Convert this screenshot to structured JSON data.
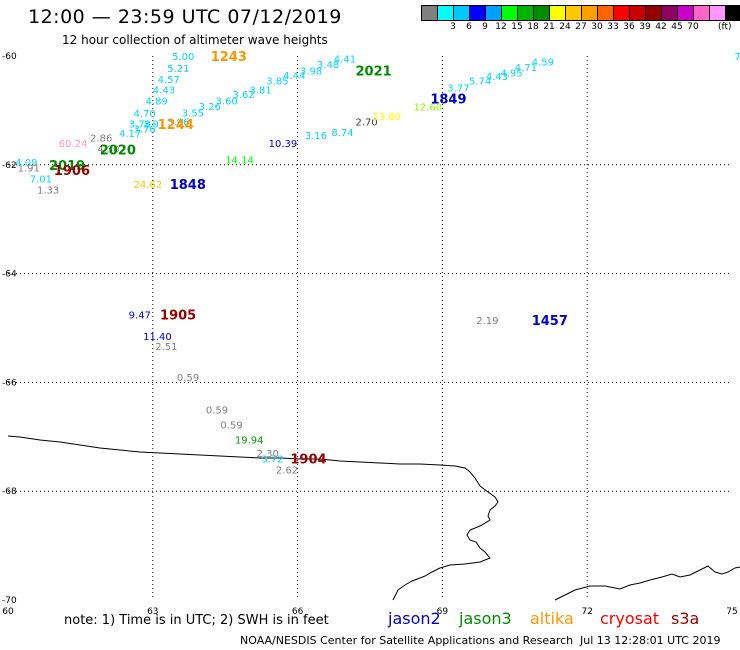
{
  "header": {
    "title": "12:00 — 23:59 UTC 07/12/2019",
    "subtitle": "12 hour collection of altimeter wave heights"
  },
  "legend": {
    "unit": "(ft)",
    "colors": [
      "#808080",
      "#00ffff",
      "#00c8ff",
      "#0000ff",
      "#00a0ff",
      "#00ff00",
      "#00b400",
      "#008c00",
      "#ffff00",
      "#ffc800",
      "#ffa000",
      "#ff6400",
      "#ff0000",
      "#c80000",
      "#960000",
      "#8c0064",
      "#c800c8",
      "#ff64c8",
      "#ff96ff",
      "#000000"
    ],
    "ticks": [
      {
        "label": "3",
        "index": 1
      },
      {
        "label": "6",
        "index": 2
      },
      {
        "label": "9",
        "index": 3
      },
      {
        "label": "12",
        "index": 4
      },
      {
        "label": "15",
        "index": 5
      },
      {
        "label": "18",
        "index": 6
      },
      {
        "label": "21",
        "index": 7
      },
      {
        "label": "24",
        "index": 8
      },
      {
        "label": "27",
        "index": 9
      },
      {
        "label": "30",
        "index": 10
      },
      {
        "label": "33",
        "index": 11
      },
      {
        "label": "36",
        "index": 12
      },
      {
        "label": "39",
        "index": 13
      },
      {
        "label": "42",
        "index": 14
      },
      {
        "label": "45",
        "index": 15
      },
      {
        "label": "70",
        "index": 16
      }
    ]
  },
  "axes": {
    "lon_ticks": [
      {
        "value": 60,
        "label": "60"
      },
      {
        "value": 63,
        "label": "63"
      },
      {
        "value": 66,
        "label": "66"
      },
      {
        "value": 69,
        "label": "69"
      },
      {
        "value": 72,
        "label": "72"
      },
      {
        "value": 75,
        "label": "75"
      }
    ],
    "lat_ticks": [
      {
        "value": -60,
        "label": "-60"
      },
      {
        "value": -62,
        "label": "-62"
      },
      {
        "value": -64,
        "label": "-64"
      },
      {
        "value": -66,
        "label": "-66"
      },
      {
        "value": -68,
        "label": "-68"
      },
      {
        "value": -70,
        "label": "-70"
      }
    ],
    "lon_range": [
      60,
      75
    ],
    "lat_range": [
      -60,
      -70
    ],
    "grid": "dotted"
  },
  "wave_heights": [
    {
      "lon": 63.4,
      "lat": -60.0,
      "text": "5.00",
      "color": "#00d8ff"
    },
    {
      "lon": 63.3,
      "lat": -60.22,
      "text": "5.21",
      "color": "#00d8ff"
    },
    {
      "lon": 63.1,
      "lat": -60.42,
      "text": "4.57",
      "color": "#00d8ff"
    },
    {
      "lon": 63.0,
      "lat": -60.62,
      "text": "4.43",
      "color": "#00d8ff"
    },
    {
      "lon": 62.85,
      "lat": -60.82,
      "text": "4.89",
      "color": "#00d8ff"
    },
    {
      "lon": 62.6,
      "lat": -61.05,
      "text": "4.70",
      "color": "#00d8ff"
    },
    {
      "lon": 62.5,
      "lat": -61.24,
      "text": "3.78",
      "color": "#00d8ff"
    },
    {
      "lon": 62.8,
      "lat": -61.24,
      "text": "3.9",
      "color": "#00d8ff"
    },
    {
      "lon": 62.6,
      "lat": -61.33,
      "text": "3.76",
      "color": "#00d8ff"
    },
    {
      "lon": 62.3,
      "lat": -61.42,
      "text": "4.17",
      "color": "#00d8ff"
    },
    {
      "lon": 61.7,
      "lat": -61.5,
      "text": "2.86",
      "color": "#808080"
    },
    {
      "lon": 61.05,
      "lat": -61.6,
      "text": "60.24",
      "color": "#ff96c8"
    },
    {
      "lon": 61.85,
      "lat": -61.7,
      "text": "4.30",
      "color": "#808080"
    },
    {
      "lon": 60.15,
      "lat": -61.95,
      "text": "4.09",
      "color": "#00d8ff"
    },
    {
      "lon": 60.2,
      "lat": -62.05,
      "text": "1.91",
      "color": "#808080"
    },
    {
      "lon": 60.45,
      "lat": -62.25,
      "text": "7.01",
      "color": "#00d8ff"
    },
    {
      "lon": 60.6,
      "lat": -62.45,
      "text": "1.33",
      "color": "#808080"
    },
    {
      "lon": 62.6,
      "lat": -62.35,
      "text": "24.62",
      "color": "#ffc800"
    },
    {
      "lon": 63.3,
      "lat": -61.2,
      "text": "3.96",
      "color": "#00d8ff"
    },
    {
      "lon": 63.6,
      "lat": -61.04,
      "text": "3.55",
      "color": "#00d8ff"
    },
    {
      "lon": 63.95,
      "lat": -60.92,
      "text": "3.26",
      "color": "#00d8ff"
    },
    {
      "lon": 64.3,
      "lat": -60.82,
      "text": "3.60",
      "color": "#00d8ff"
    },
    {
      "lon": 64.65,
      "lat": -60.7,
      "text": "3.62",
      "color": "#00d8ff"
    },
    {
      "lon": 65.0,
      "lat": -60.62,
      "text": "3.81",
      "color": "#00d8ff"
    },
    {
      "lon": 65.35,
      "lat": -60.45,
      "text": "3.85",
      "color": "#00d8ff"
    },
    {
      "lon": 65.7,
      "lat": -60.35,
      "text": "4.44",
      "color": "#00d8ff"
    },
    {
      "lon": 66.05,
      "lat": -60.27,
      "text": "3.98",
      "color": "#00d8ff"
    },
    {
      "lon": 66.4,
      "lat": -60.15,
      "text": "3.48",
      "color": "#00d8ff"
    },
    {
      "lon": 66.75,
      "lat": -60.05,
      "text": "4.41",
      "color": "#00d8ff"
    },
    {
      "lon": 64.5,
      "lat": -61.9,
      "text": "14.14",
      "color": "#00ff00"
    },
    {
      "lon": 65.4,
      "lat": -61.6,
      "text": "10.39",
      "color": "#0000dc"
    },
    {
      "lon": 66.15,
      "lat": -61.45,
      "text": "3.16",
      "color": "#00d8ff"
    },
    {
      "lon": 66.7,
      "lat": -61.4,
      "text": "8.74",
      "color": "#00d8ff"
    },
    {
      "lon": 67.2,
      "lat": -61.2,
      "text": "2.70",
      "color": "#404040"
    },
    {
      "lon": 67.55,
      "lat": -61.1,
      "text": "23.80",
      "color": "#ffff00"
    },
    {
      "lon": 68.4,
      "lat": -60.93,
      "text": "12.60",
      "color": "#8cff00"
    },
    {
      "lon": 69.1,
      "lat": -60.58,
      "text": "3.77",
      "color": "#00d8ff"
    },
    {
      "lon": 69.55,
      "lat": -60.45,
      "text": "5.74",
      "color": "#00d8ff"
    },
    {
      "lon": 69.9,
      "lat": -60.37,
      "text": "4.43",
      "color": "#00d8ff"
    },
    {
      "lon": 70.2,
      "lat": -60.3,
      "text": "4.95",
      "color": "#00d8ff"
    },
    {
      "lon": 70.5,
      "lat": -60.2,
      "text": "4.71",
      "color": "#00d8ff"
    },
    {
      "lon": 70.85,
      "lat": -60.1,
      "text": "4.59",
      "color": "#00d8ff"
    },
    {
      "lon": 75.05,
      "lat": -60.0,
      "text": "7",
      "color": "#00d8ff"
    },
    {
      "lon": 62.5,
      "lat": -64.75,
      "text": "9.47",
      "color": "#0000dc"
    },
    {
      "lon": 62.8,
      "lat": -65.15,
      "text": "11.40",
      "color": "#0000dc"
    },
    {
      "lon": 63.05,
      "lat": -65.33,
      "text": "2.51",
      "color": "#808080"
    },
    {
      "lon": 63.5,
      "lat": -65.9,
      "text": "0.59",
      "color": "#808080"
    },
    {
      "lon": 64.1,
      "lat": -66.5,
      "text": "0.59",
      "color": "#808080"
    },
    {
      "lon": 64.4,
      "lat": -66.77,
      "text": "0.59",
      "color": "#808080"
    },
    {
      "lon": 64.7,
      "lat": -67.05,
      "text": "19.94",
      "color": "#00a000"
    },
    {
      "lon": 65.15,
      "lat": -67.3,
      "text": "2.30",
      "color": "#808080"
    },
    {
      "lon": 65.25,
      "lat": -67.4,
      "text": "3.72",
      "color": "#00d8ff"
    },
    {
      "lon": 65.55,
      "lat": -67.6,
      "text": "2.62",
      "color": "#808080"
    },
    {
      "lon": 69.7,
      "lat": -64.85,
      "text": "2.19",
      "color": "#808080"
    }
  ],
  "pass_times": [
    {
      "lon": 64.2,
      "lat": -60.0,
      "text": "1243",
      "color": "#ff9600"
    },
    {
      "lon": 63.1,
      "lat": -61.25,
      "text": "1244",
      "color": "#ff9600"
    },
    {
      "lon": 67.2,
      "lat": -60.27,
      "text": "2021",
      "color": "#008c00"
    },
    {
      "lon": 61.9,
      "lat": -61.72,
      "text": "2020",
      "color": "#008c00"
    },
    {
      "lon": 60.85,
      "lat": -62.0,
      "text": "2019",
      "color": "#008c00"
    },
    {
      "lon": 60.95,
      "lat": -62.1,
      "text": "1906",
      "color": "#960000"
    },
    {
      "lon": 63.35,
      "lat": -62.35,
      "text": "1848",
      "color": "#0000c8"
    },
    {
      "lon": 68.75,
      "lat": -60.78,
      "text": "1849",
      "color": "#0000c8"
    },
    {
      "lon": 63.15,
      "lat": -64.75,
      "text": "1905",
      "color": "#960000"
    },
    {
      "lon": 65.85,
      "lat": -67.4,
      "text": "1904",
      "color": "#960000"
    },
    {
      "lon": 70.85,
      "lat": -64.85,
      "text": "1457",
      "color": "#0000c8"
    }
  ],
  "note": {
    "text": "note: 1) Time is in UTC; 2) SWH is in feet"
  },
  "satellites": [
    {
      "name": "jason2",
      "color": "#0000c8"
    },
    {
      "name": "jason3",
      "color": "#008c00"
    },
    {
      "name": "altika",
      "color": "#ff9600"
    },
    {
      "name": "cryosat",
      "color": "#ff0000"
    },
    {
      "name": "s3a",
      "color": "#960000"
    }
  ],
  "footer": {
    "credit": "NOAA/NESDIS Center for Satellite Applications and Research",
    "timestamp": "Jul 13 12:28:01 UTC 2019"
  }
}
